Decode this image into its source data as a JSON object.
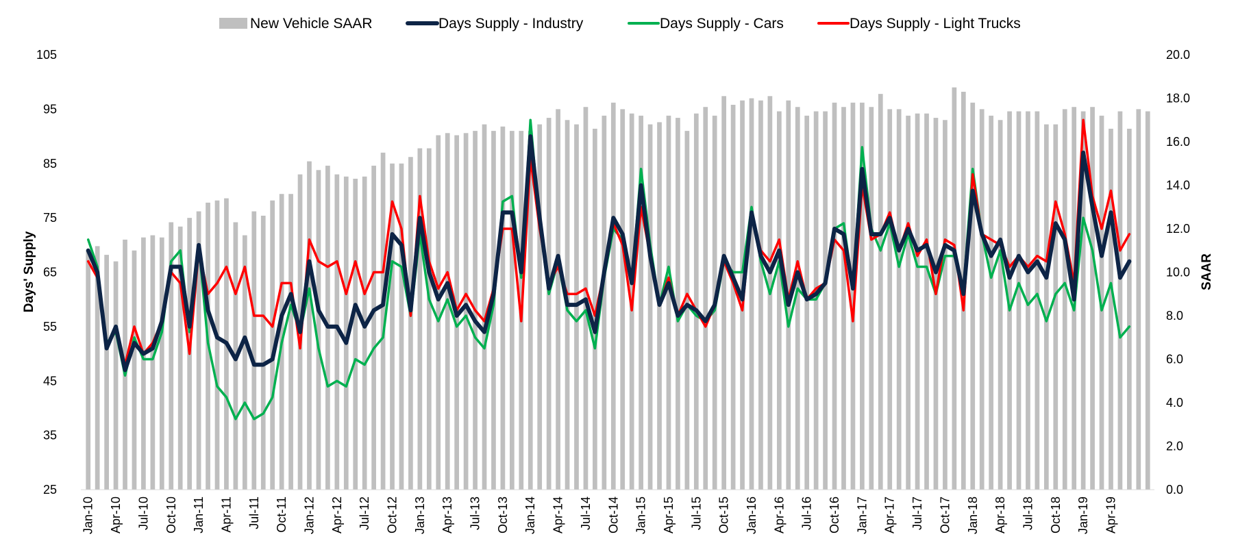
{
  "chart_data": {
    "type": "bar+line",
    "title": "",
    "left_axis": {
      "label": "Days' Supply",
      "ylim": [
        25,
        105
      ],
      "ticks": [
        "105",
        "95",
        "85",
        "75",
        "65",
        "55",
        "45",
        "35",
        "25"
      ]
    },
    "right_axis": {
      "label": "SAAR",
      "ylim": [
        0,
        20
      ],
      "ticks": [
        "20.0",
        "18.0",
        "16.0",
        "14.0",
        "12.0",
        "10.0",
        "8.0",
        "6.0",
        "4.0",
        "2.0",
        "0.0"
      ]
    },
    "x_tick_labels": [
      "Jan-10",
      "Apr-10",
      "Jul-10",
      "Oct-10",
      "Jan-11",
      "Apr-11",
      "Jul-11",
      "Oct-11",
      "Jan-12",
      "Apr-12",
      "Jul-12",
      "Oct-12",
      "Jan-13",
      "Apr-13",
      "Jul-13",
      "Oct-13",
      "Jan-14",
      "Apr-14",
      "Jul-14",
      "Oct-14",
      "Jan-15",
      "Apr-15",
      "Jul-15",
      "Oct-15",
      "Jan-16",
      "Apr-16",
      "Jul-16",
      "Oct-16",
      "Jan-17",
      "Apr-17",
      "Jul-17",
      "Oct-17",
      "Jan-18",
      "Apr-18",
      "Jul-18",
      "Oct-18",
      "Jan-19",
      "Apr-19"
    ],
    "grid": false,
    "legend_placement": "top",
    "series": [
      {
        "name": "New Vehicle SAAR",
        "type": "bar",
        "axis": "right",
        "color": "#bfbfbf",
        "values": [
          11.0,
          11.2,
          10.8,
          10.5,
          11.5,
          11.0,
          11.6,
          11.7,
          11.6,
          12.3,
          12.1,
          12.5,
          12.8,
          13.2,
          13.3,
          13.4,
          12.3,
          11.7,
          12.8,
          12.6,
          13.3,
          13.6,
          13.6,
          14.5,
          15.1,
          14.7,
          14.9,
          14.5,
          14.4,
          14.3,
          14.4,
          14.9,
          15.5,
          15.0,
          15.0,
          15.3,
          15.7,
          15.7,
          16.3,
          16.4,
          16.3,
          16.4,
          16.5,
          16.8,
          16.5,
          16.7,
          16.5,
          16.5,
          16.5,
          16.8,
          17.1,
          17.5,
          17.0,
          16.8,
          17.6,
          16.6,
          17.2,
          17.8,
          17.5,
          17.3,
          17.2,
          16.8,
          16.9,
          17.2,
          17.1,
          16.5,
          17.3,
          17.6,
          17.2,
          18.1,
          17.7,
          17.9,
          18.0,
          17.9,
          18.1,
          17.4,
          17.9,
          17.6,
          17.2,
          17.4,
          17.4,
          17.8,
          17.6,
          17.8,
          17.8,
          17.6,
          18.2,
          17.5,
          17.5,
          17.2,
          17.3,
          17.3,
          17.1,
          17.0,
          18.5,
          18.3,
          17.8,
          17.5,
          17.2,
          17.0,
          17.4,
          17.4,
          17.4,
          17.4,
          16.8,
          16.8,
          17.5,
          17.6,
          17.4,
          17.6,
          17.2,
          16.6,
          17.4,
          16.6,
          17.5,
          17.4
        ]
      },
      {
        "name": "Days Supply - Industry",
        "type": "line",
        "axis": "left",
        "color": "#0d2446",
        "values": [
          69,
          65,
          51,
          55,
          47,
          52,
          50,
          51,
          56,
          66,
          66,
          55,
          70,
          58,
          53,
          52,
          49,
          53,
          48,
          48,
          49,
          57,
          61,
          54,
          67,
          58,
          55,
          55,
          52,
          59,
          55,
          58,
          59,
          72,
          70,
          58,
          75,
          65,
          60,
          63,
          57,
          59,
          56,
          54,
          61,
          76,
          76,
          65,
          90,
          75,
          62,
          68,
          59,
          59,
          60,
          54,
          65,
          75,
          72,
          63,
          81,
          68,
          59,
          63,
          57,
          59,
          58,
          56,
          59,
          68,
          64,
          60,
          76,
          68,
          65,
          69,
          59,
          65,
          60,
          61,
          63,
          73,
          72,
          62,
          84,
          72,
          72,
          75,
          69,
          73,
          69,
          70,
          65,
          70,
          69,
          61,
          80,
          72,
          68,
          71,
          64,
          68,
          65,
          67,
          64,
          74,
          71,
          60,
          87,
          77,
          68,
          76,
          64,
          67
        ]
      },
      {
        "name": "Days Supply - Cars",
        "type": "line",
        "axis": "left",
        "color": "#00b050",
        "values": [
          71,
          66,
          52,
          54,
          46,
          53,
          49,
          49,
          54,
          67,
          69,
          54,
          70,
          52,
          44,
          42,
          38,
          41,
          38,
          39,
          42,
          52,
          59,
          54,
          62,
          51,
          44,
          45,
          44,
          49,
          48,
          51,
          53,
          67,
          66,
          57,
          72,
          60,
          56,
          60,
          55,
          57,
          53,
          51,
          59,
          78,
          79,
          64,
          93,
          74,
          61,
          67,
          58,
          56,
          58,
          51,
          64,
          73,
          71,
          63,
          84,
          70,
          59,
          66,
          56,
          59,
          57,
          56,
          58,
          67,
          65,
          65,
          77,
          67,
          61,
          67,
          55,
          62,
          60,
          60,
          63,
          73,
          74,
          62,
          88,
          73,
          69,
          74,
          66,
          72,
          66,
          66,
          61,
          68,
          68,
          62,
          84,
          72,
          64,
          69,
          58,
          63,
          59,
          61,
          56,
          61,
          63,
          58,
          75,
          69,
          58,
          63,
          53,
          55
        ]
      },
      {
        "name": "Days Supply - Light Trucks",
        "type": "line",
        "axis": "left",
        "color": "#ff0000",
        "values": [
          67,
          64,
          51,
          55,
          48,
          55,
          50,
          52,
          56,
          65,
          63,
          50,
          69,
          61,
          63,
          66,
          61,
          66,
          57,
          57,
          55,
          63,
          63,
          51,
          71,
          67,
          66,
          67,
          61,
          67,
          61,
          65,
          65,
          78,
          73,
          57,
          79,
          67,
          62,
          65,
          58,
          61,
          58,
          56,
          62,
          73,
          73,
          56,
          86,
          73,
          63,
          66,
          61,
          61,
          62,
          57,
          65,
          74,
          70,
          58,
          77,
          68,
          59,
          64,
          57,
          61,
          58,
          55,
          59,
          67,
          63,
          58,
          76,
          69,
          67,
          71,
          60,
          67,
          60,
          62,
          63,
          71,
          69,
          56,
          81,
          71,
          72,
          76,
          69,
          74,
          68,
          71,
          61,
          71,
          70,
          58,
          83,
          72,
          71,
          70,
          66,
          68,
          66,
          68,
          67,
          78,
          72,
          63,
          93,
          79,
          73,
          80,
          69,
          72
        ]
      }
    ]
  }
}
